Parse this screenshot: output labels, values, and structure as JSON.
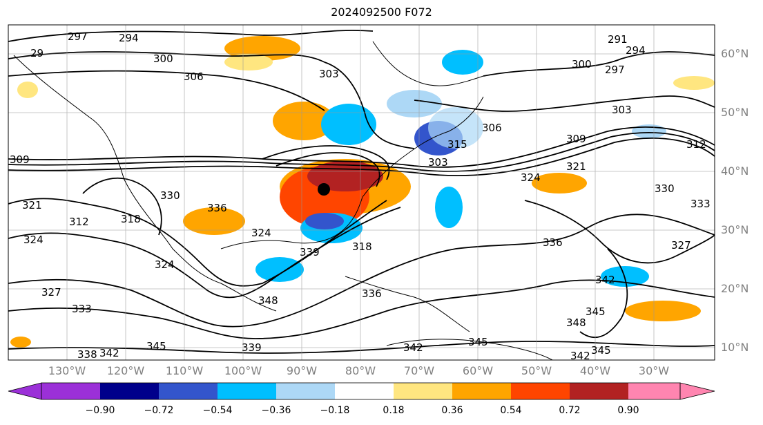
{
  "title": "2024092500 F072",
  "lat_labels": [
    "60°N",
    "50°N",
    "40°N",
    "30°N",
    "20°N",
    "10°N"
  ],
  "lon_labels": [
    "130°W",
    "120°W",
    "110°W",
    "100°W",
    "90°W",
    "80°W",
    "70°W",
    "60°W",
    "50°W",
    "40°W",
    "30°W"
  ],
  "colorbar": {
    "ticks": [
      "−0.90",
      "−0.72",
      "−0.54",
      "−0.36",
      "−0.18",
      "0.18",
      "0.36",
      "0.54",
      "0.72",
      "0.90"
    ],
    "colors": [
      "#9b30d8",
      "#00008b",
      "#3355cc",
      "#00bfff",
      "#add8f6",
      "#ffffff",
      "#ffe680",
      "#ffa500",
      "#ff4500",
      "#b22222",
      "#ff85b0"
    ]
  },
  "contour_labels": [
    "297",
    "294",
    "291",
    "294",
    "300",
    "297",
    "300",
    "306",
    "303",
    "303",
    "309",
    "306",
    "315",
    "312",
    "309",
    "321",
    "324",
    "330",
    "336",
    "312",
    "318",
    "324",
    "330",
    "327",
    "321",
    "327",
    "324",
    "318",
    "336",
    "342",
    "333",
    "324",
    "336",
    "348",
    "339",
    "345",
    "342",
    "342",
    "345",
    "348",
    "345",
    "342",
    "339",
    "338",
    "345",
    "333",
    "29",
    "303"
  ],
  "colors": {
    "axis_label": "#808080",
    "contour": "#000000",
    "marker": "#000000"
  }
}
